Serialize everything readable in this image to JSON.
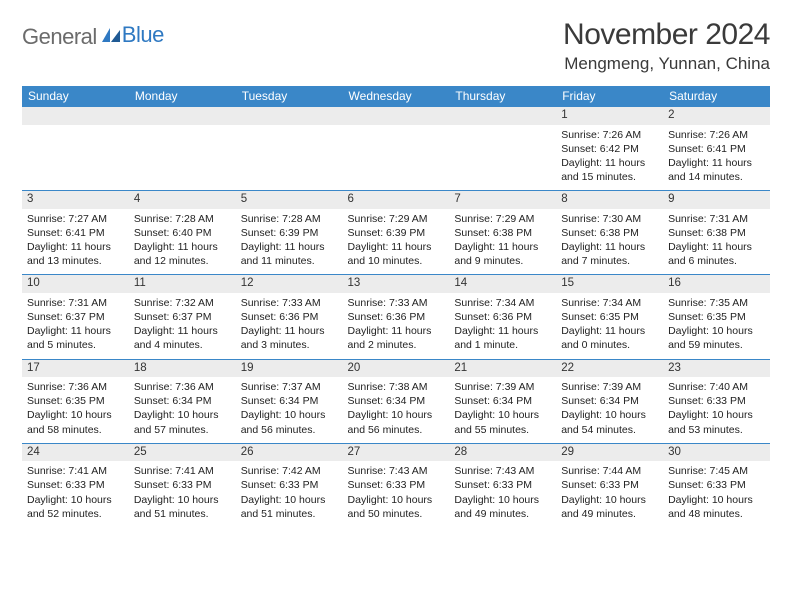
{
  "logo": {
    "part1": "General",
    "part2": "Blue"
  },
  "title": "November 2024",
  "location": "Mengmeng, Yunnan, China",
  "colors": {
    "header_bg": "#3a87c8",
    "header_text": "#ffffff",
    "daynum_bg": "#ececec",
    "row_border": "#3a87c8",
    "text": "#222222",
    "logo_gray": "#6b6b6b",
    "logo_blue": "#2f79c2"
  },
  "day_headers": [
    "Sunday",
    "Monday",
    "Tuesday",
    "Wednesday",
    "Thursday",
    "Friday",
    "Saturday"
  ],
  "weeks": [
    [
      {
        "n": "",
        "lines": []
      },
      {
        "n": "",
        "lines": []
      },
      {
        "n": "",
        "lines": []
      },
      {
        "n": "",
        "lines": []
      },
      {
        "n": "",
        "lines": []
      },
      {
        "n": "1",
        "lines": [
          "Sunrise: 7:26 AM",
          "Sunset: 6:42 PM",
          "Daylight: 11 hours",
          "and 15 minutes."
        ]
      },
      {
        "n": "2",
        "lines": [
          "Sunrise: 7:26 AM",
          "Sunset: 6:41 PM",
          "Daylight: 11 hours",
          "and 14 minutes."
        ]
      }
    ],
    [
      {
        "n": "3",
        "lines": [
          "Sunrise: 7:27 AM",
          "Sunset: 6:41 PM",
          "Daylight: 11 hours",
          "and 13 minutes."
        ]
      },
      {
        "n": "4",
        "lines": [
          "Sunrise: 7:28 AM",
          "Sunset: 6:40 PM",
          "Daylight: 11 hours",
          "and 12 minutes."
        ]
      },
      {
        "n": "5",
        "lines": [
          "Sunrise: 7:28 AM",
          "Sunset: 6:39 PM",
          "Daylight: 11 hours",
          "and 11 minutes."
        ]
      },
      {
        "n": "6",
        "lines": [
          "Sunrise: 7:29 AM",
          "Sunset: 6:39 PM",
          "Daylight: 11 hours",
          "and 10 minutes."
        ]
      },
      {
        "n": "7",
        "lines": [
          "Sunrise: 7:29 AM",
          "Sunset: 6:38 PM",
          "Daylight: 11 hours",
          "and 9 minutes."
        ]
      },
      {
        "n": "8",
        "lines": [
          "Sunrise: 7:30 AM",
          "Sunset: 6:38 PM",
          "Daylight: 11 hours",
          "and 7 minutes."
        ]
      },
      {
        "n": "9",
        "lines": [
          "Sunrise: 7:31 AM",
          "Sunset: 6:38 PM",
          "Daylight: 11 hours",
          "and 6 minutes."
        ]
      }
    ],
    [
      {
        "n": "10",
        "lines": [
          "Sunrise: 7:31 AM",
          "Sunset: 6:37 PM",
          "Daylight: 11 hours",
          "and 5 minutes."
        ]
      },
      {
        "n": "11",
        "lines": [
          "Sunrise: 7:32 AM",
          "Sunset: 6:37 PM",
          "Daylight: 11 hours",
          "and 4 minutes."
        ]
      },
      {
        "n": "12",
        "lines": [
          "Sunrise: 7:33 AM",
          "Sunset: 6:36 PM",
          "Daylight: 11 hours",
          "and 3 minutes."
        ]
      },
      {
        "n": "13",
        "lines": [
          "Sunrise: 7:33 AM",
          "Sunset: 6:36 PM",
          "Daylight: 11 hours",
          "and 2 minutes."
        ]
      },
      {
        "n": "14",
        "lines": [
          "Sunrise: 7:34 AM",
          "Sunset: 6:36 PM",
          "Daylight: 11 hours",
          "and 1 minute."
        ]
      },
      {
        "n": "15",
        "lines": [
          "Sunrise: 7:34 AM",
          "Sunset: 6:35 PM",
          "Daylight: 11 hours",
          "and 0 minutes."
        ]
      },
      {
        "n": "16",
        "lines": [
          "Sunrise: 7:35 AM",
          "Sunset: 6:35 PM",
          "Daylight: 10 hours",
          "and 59 minutes."
        ]
      }
    ],
    [
      {
        "n": "17",
        "lines": [
          "Sunrise: 7:36 AM",
          "Sunset: 6:35 PM",
          "Daylight: 10 hours",
          "and 58 minutes."
        ]
      },
      {
        "n": "18",
        "lines": [
          "Sunrise: 7:36 AM",
          "Sunset: 6:34 PM",
          "Daylight: 10 hours",
          "and 57 minutes."
        ]
      },
      {
        "n": "19",
        "lines": [
          "Sunrise: 7:37 AM",
          "Sunset: 6:34 PM",
          "Daylight: 10 hours",
          "and 56 minutes."
        ]
      },
      {
        "n": "20",
        "lines": [
          "Sunrise: 7:38 AM",
          "Sunset: 6:34 PM",
          "Daylight: 10 hours",
          "and 56 minutes."
        ]
      },
      {
        "n": "21",
        "lines": [
          "Sunrise: 7:39 AM",
          "Sunset: 6:34 PM",
          "Daylight: 10 hours",
          "and 55 minutes."
        ]
      },
      {
        "n": "22",
        "lines": [
          "Sunrise: 7:39 AM",
          "Sunset: 6:34 PM",
          "Daylight: 10 hours",
          "and 54 minutes."
        ]
      },
      {
        "n": "23",
        "lines": [
          "Sunrise: 7:40 AM",
          "Sunset: 6:33 PM",
          "Daylight: 10 hours",
          "and 53 minutes."
        ]
      }
    ],
    [
      {
        "n": "24",
        "lines": [
          "Sunrise: 7:41 AM",
          "Sunset: 6:33 PM",
          "Daylight: 10 hours",
          "and 52 minutes."
        ]
      },
      {
        "n": "25",
        "lines": [
          "Sunrise: 7:41 AM",
          "Sunset: 6:33 PM",
          "Daylight: 10 hours",
          "and 51 minutes."
        ]
      },
      {
        "n": "26",
        "lines": [
          "Sunrise: 7:42 AM",
          "Sunset: 6:33 PM",
          "Daylight: 10 hours",
          "and 51 minutes."
        ]
      },
      {
        "n": "27",
        "lines": [
          "Sunrise: 7:43 AM",
          "Sunset: 6:33 PM",
          "Daylight: 10 hours",
          "and 50 minutes."
        ]
      },
      {
        "n": "28",
        "lines": [
          "Sunrise: 7:43 AM",
          "Sunset: 6:33 PM",
          "Daylight: 10 hours",
          "and 49 minutes."
        ]
      },
      {
        "n": "29",
        "lines": [
          "Sunrise: 7:44 AM",
          "Sunset: 6:33 PM",
          "Daylight: 10 hours",
          "and 49 minutes."
        ]
      },
      {
        "n": "30",
        "lines": [
          "Sunrise: 7:45 AM",
          "Sunset: 6:33 PM",
          "Daylight: 10 hours",
          "and 48 minutes."
        ]
      }
    ]
  ]
}
